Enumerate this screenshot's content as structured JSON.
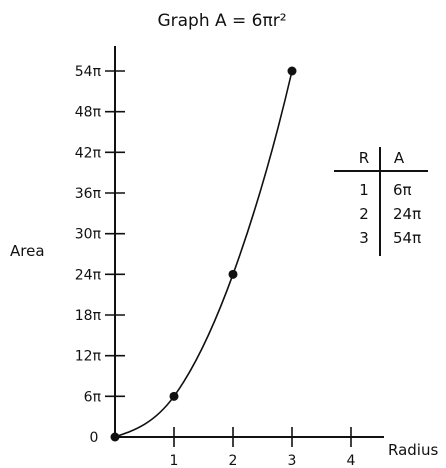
{
  "chart_data": {
    "type": "line",
    "title": "Graph A = 6πr²",
    "xlabel": "Radius",
    "ylabel": "Area",
    "x": [
      0,
      1,
      2,
      3
    ],
    "y": [
      0,
      6,
      24,
      54
    ],
    "y_unit": "π",
    "xlim": [
      0,
      4
    ],
    "ylim": [
      0,
      54
    ],
    "x_ticks": [
      "1",
      "2",
      "3",
      "4"
    ],
    "y_ticks": [
      "6π",
      "12π",
      "18π",
      "24π",
      "30π",
      "36π",
      "42π",
      "48π",
      "54π"
    ],
    "origin_label": "0",
    "grid": false,
    "marked_points": [
      1,
      2,
      3
    ],
    "table": {
      "headers": [
        "R",
        "A"
      ],
      "rows": [
        [
          "1",
          "6π"
        ],
        [
          "2",
          "24π"
        ],
        [
          "3",
          "54π"
        ]
      ]
    }
  }
}
